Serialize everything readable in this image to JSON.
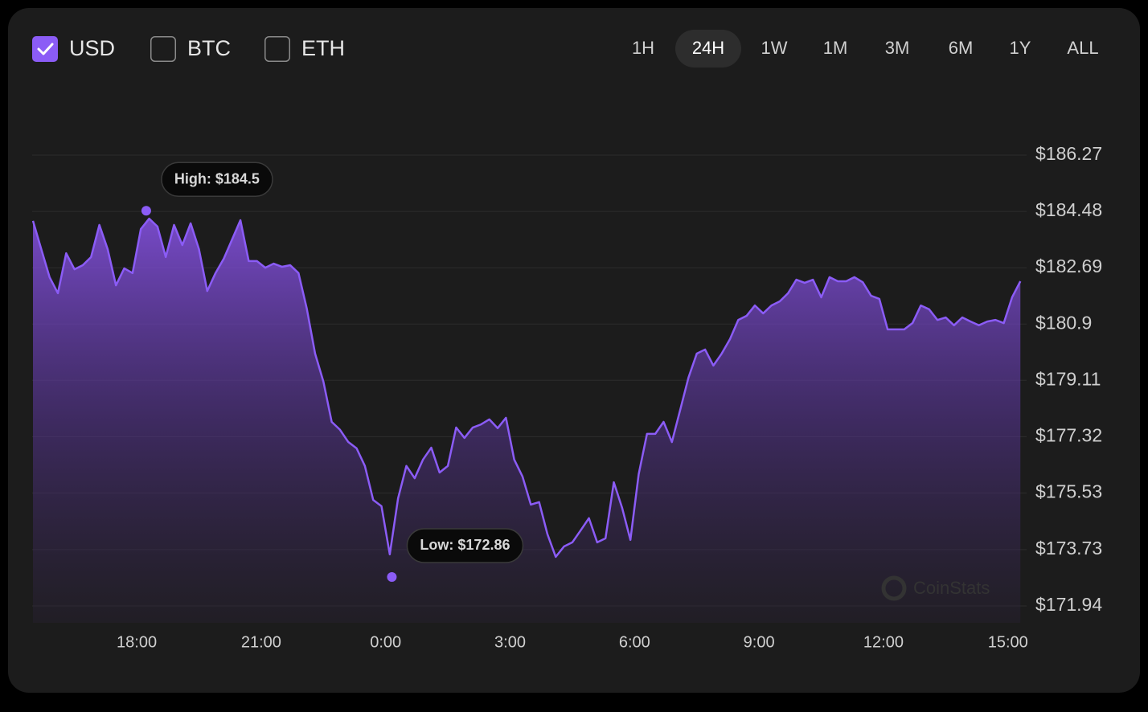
{
  "controls": {
    "currencies": [
      {
        "label": "USD",
        "checked": true
      },
      {
        "label": "BTC",
        "checked": false
      },
      {
        "label": "ETH",
        "checked": false
      }
    ],
    "ranges": [
      "1H",
      "24H",
      "1W",
      "1M",
      "3M",
      "6M",
      "1Y",
      "ALL"
    ],
    "selected_range": "24H"
  },
  "watermark": "CoinStats",
  "chart_data": {
    "type": "area",
    "color": "#8b5cf6",
    "grid": true,
    "x": [
      15.5,
      15.7,
      15.9,
      16.1,
      16.3,
      16.5,
      16.7,
      16.9,
      17.1,
      17.3,
      17.5,
      17.7,
      17.9,
      18.1,
      18.3,
      18.5,
      18.7,
      18.9,
      19.1,
      19.3,
      19.5,
      19.7,
      19.9,
      20.1,
      20.3,
      20.5,
      20.7,
      20.9,
      21.1,
      21.3,
      21.5,
      21.7,
      21.9,
      22.1,
      22.3,
      22.5,
      22.7,
      22.9,
      23.1,
      23.3,
      23.5,
      23.7,
      23.9,
      24.1,
      24.3,
      24.5,
      24.7,
      24.9,
      25.1,
      25.3,
      25.5,
      25.7,
      25.9,
      26.1,
      26.3,
      26.5,
      26.7,
      26.9,
      27.1,
      27.3,
      27.5,
      27.7,
      27.9,
      28.1,
      28.3,
      28.5,
      28.7,
      28.9,
      29.1,
      29.3,
      29.5,
      29.7,
      29.9,
      30.1,
      30.3,
      30.5,
      30.7,
      30.9,
      31.1,
      31.3,
      31.5,
      31.7,
      31.9,
      32.1,
      32.3,
      32.5,
      32.7,
      32.9,
      33.1,
      33.3,
      33.5,
      33.7,
      33.9,
      34.1,
      34.3,
      34.5,
      34.7,
      34.9,
      35.1,
      35.3,
      35.5,
      35.7,
      35.9,
      36.1,
      36.3,
      36.5,
      36.7,
      36.9,
      37.1,
      37.3,
      37.5,
      37.7,
      37.9,
      38.1,
      38.3,
      38.5,
      38.7,
      38.9,
      39.1,
      39.3
    ],
    "values": [
      184.18,
      183.28,
      182.39,
      181.88,
      183.15,
      182.64,
      182.77,
      183.03,
      184.05,
      183.28,
      182.13,
      182.67,
      182.52,
      183.92,
      184.25,
      184.0,
      183.03,
      184.05,
      183.41,
      184.1,
      183.28,
      181.95,
      182.52,
      182.98,
      183.59,
      184.2,
      182.9,
      182.9,
      182.69,
      182.82,
      182.72,
      182.77,
      182.52,
      181.39,
      179.96,
      179.07,
      177.79,
      177.54,
      177.15,
      176.95,
      176.39,
      175.31,
      175.11,
      173.58,
      175.36,
      176.39,
      176.0,
      176.59,
      176.97,
      176.18,
      176.39,
      177.61,
      177.28,
      177.61,
      177.71,
      177.87,
      177.59,
      177.92,
      176.59,
      176.05,
      175.16,
      175.24,
      174.22,
      173.5,
      173.83,
      173.96,
      174.34,
      174.73,
      173.96,
      174.09,
      175.87,
      175.06,
      174.04,
      176.13,
      177.41,
      177.41,
      177.79,
      177.15,
      178.17,
      179.2,
      179.96,
      180.09,
      179.58,
      179.96,
      180.42,
      181.03,
      181.16,
      181.49,
      181.24,
      181.49,
      181.62,
      181.88,
      182.31,
      182.21,
      182.31,
      181.75,
      182.39,
      182.26,
      182.26,
      182.39,
      182.23,
      181.8,
      181.7,
      180.73,
      180.73,
      180.73,
      180.93,
      181.49,
      181.37,
      181.03,
      181.11,
      180.86,
      181.11,
      180.98,
      180.86,
      180.98,
      181.03,
      180.93,
      181.75,
      182.26
    ],
    "xlim": [
      15.48,
      39.45
    ],
    "ylim": [
      171.94,
      186.27
    ],
    "xticks": [
      {
        "value": 18,
        "label": "18:00"
      },
      {
        "value": 21,
        "label": "21:00"
      },
      {
        "value": 24,
        "label": "0:00"
      },
      {
        "value": 27,
        "label": "3:00"
      },
      {
        "value": 30,
        "label": "6:00"
      },
      {
        "value": 33,
        "label": "9:00"
      },
      {
        "value": 36,
        "label": "12:00"
      },
      {
        "value": 39,
        "label": "15:00"
      }
    ],
    "yticks": [
      {
        "value": 186.27,
        "label": "$186.27"
      },
      {
        "value": 184.48,
        "label": "$184.48"
      },
      {
        "value": 182.69,
        "label": "$182.69"
      },
      {
        "value": 180.9,
        "label": "$180.9"
      },
      {
        "value": 179.11,
        "label": "$179.11"
      },
      {
        "value": 177.32,
        "label": "$177.32"
      },
      {
        "value": 175.53,
        "label": "$175.53"
      },
      {
        "value": 173.73,
        "label": "$173.73"
      },
      {
        "value": 171.94,
        "label": "$171.94"
      }
    ],
    "annotations": [
      {
        "text": "High: $184.5",
        "x": 18.23,
        "y": 184.5
      },
      {
        "text": "Low: $172.86",
        "x": 24.15,
        "y": 172.86
      }
    ]
  }
}
